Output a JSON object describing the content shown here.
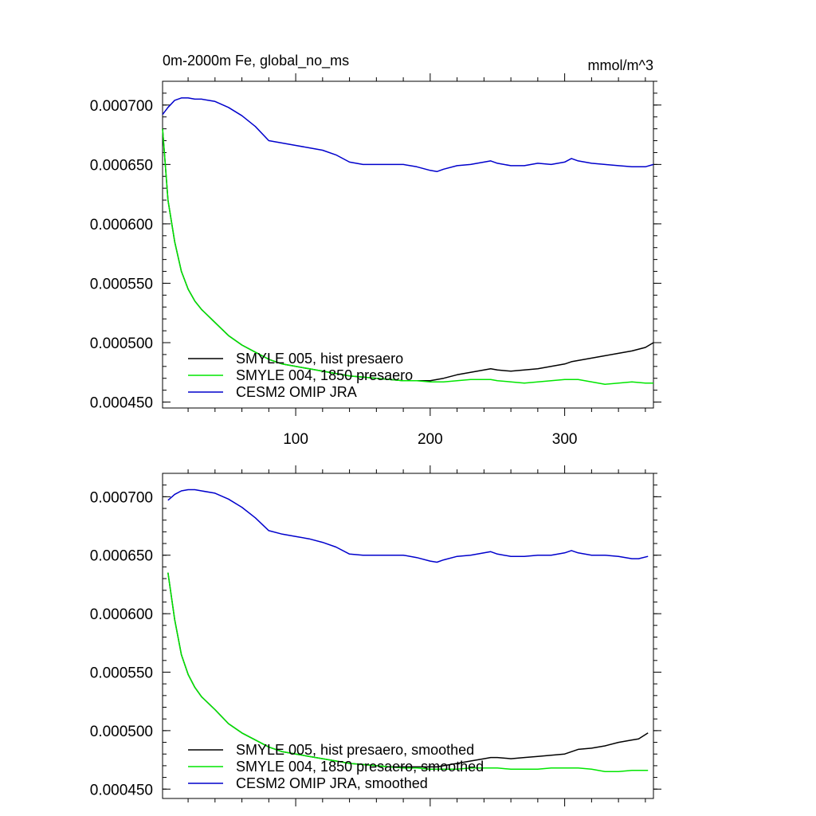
{
  "chart_data": [
    {
      "type": "line",
      "title": "0m-2000m Fe, global_no_ms",
      "units": "mmol/m^3",
      "xlabel": "",
      "ylabel": "",
      "xlim": [
        1,
        366
      ],
      "ylim": [
        0.000445,
        0.00072
      ],
      "xticks": [
        100,
        200,
        300
      ],
      "xtick_labels": [
        "100",
        "200",
        "300"
      ],
      "yticks": [
        0.00045,
        0.0005,
        0.00055,
        0.0006,
        0.00065,
        0.0007
      ],
      "ytick_labels": [
        "0.000450",
        "0.000500",
        "0.000550",
        "0.000600",
        "0.000650",
        "0.000700"
      ],
      "legend_position": "bottom-left",
      "grid": false,
      "x": [
        1,
        5,
        10,
        15,
        20,
        25,
        30,
        40,
        50,
        60,
        70,
        80,
        90,
        100,
        110,
        120,
        130,
        140,
        150,
        160,
        170,
        180,
        190,
        200,
        205,
        210,
        220,
        230,
        240,
        245,
        250,
        260,
        270,
        280,
        290,
        300,
        305,
        310,
        320,
        330,
        340,
        350,
        360,
        366
      ],
      "series": [
        {
          "name": "SMYLE 005, hist presaero",
          "color": "#000000",
          "values": [
            0.00068,
            0.00062,
            0.000585,
            0.00056,
            0.000545,
            0.000535,
            0.000528,
            0.000517,
            0.000506,
            0.000498,
            0.000492,
            0.000486,
            0.000482,
            0.00048,
            0.000478,
            0.000476,
            0.000474,
            0.000472,
            0.000471,
            0.00047,
            0.000469,
            0.000468,
            0.000468,
            0.000468,
            0.000469,
            0.00047,
            0.000473,
            0.000475,
            0.000477,
            0.000478,
            0.000477,
            0.000476,
            0.000477,
            0.000478,
            0.00048,
            0.000482,
            0.000484,
            0.000485,
            0.000487,
            0.000489,
            0.000491,
            0.000493,
            0.000496,
            0.0005
          ]
        },
        {
          "name": "SMYLE 004, 1850 presaero",
          "color": "#00e600",
          "values": [
            0.00068,
            0.00062,
            0.000585,
            0.00056,
            0.000545,
            0.000535,
            0.000528,
            0.000517,
            0.000506,
            0.000498,
            0.000492,
            0.000486,
            0.000482,
            0.00048,
            0.000478,
            0.000476,
            0.000474,
            0.000472,
            0.000471,
            0.00047,
            0.000469,
            0.000468,
            0.000468,
            0.000467,
            0.000467,
            0.000467,
            0.000468,
            0.000469,
            0.000469,
            0.000469,
            0.000468,
            0.000467,
            0.000466,
            0.000467,
            0.000468,
            0.000469,
            0.000469,
            0.000469,
            0.000467,
            0.000465,
            0.000466,
            0.000467,
            0.000466,
            0.000466
          ]
        },
        {
          "name": "CESM2 OMIP JRA",
          "color": "#0000cc",
          "values": [
            0.000692,
            0.000698,
            0.000704,
            0.000706,
            0.000706,
            0.000705,
            0.000705,
            0.000703,
            0.000698,
            0.000691,
            0.000682,
            0.00067,
            0.000668,
            0.000666,
            0.000664,
            0.000662,
            0.000658,
            0.000652,
            0.00065,
            0.00065,
            0.00065,
            0.00065,
            0.000648,
            0.000645,
            0.000644,
            0.000646,
            0.000649,
            0.00065,
            0.000652,
            0.000653,
            0.000651,
            0.000649,
            0.000649,
            0.000651,
            0.00065,
            0.000652,
            0.000655,
            0.000653,
            0.000651,
            0.00065,
            0.000649,
            0.000648,
            0.000648,
            0.00065
          ]
        }
      ]
    },
    {
      "type": "line",
      "title": "",
      "units": "",
      "xlabel": "",
      "ylabel": "",
      "xlim": [
        1,
        366
      ],
      "ylim": [
        0.000442,
        0.00072
      ],
      "xticks": [
        100,
        200,
        300
      ],
      "yticks": [
        0.00045,
        0.0005,
        0.00055,
        0.0006,
        0.00065,
        0.0007
      ],
      "ytick_labels": [
        "0.000450",
        "0.000500",
        "0.000550",
        "0.000600",
        "0.000650",
        "0.000700"
      ],
      "legend_position": "bottom-left",
      "grid": false,
      "x": [
        5,
        10,
        15,
        20,
        25,
        30,
        40,
        50,
        60,
        70,
        80,
        90,
        100,
        110,
        120,
        130,
        140,
        150,
        160,
        170,
        180,
        190,
        200,
        205,
        210,
        220,
        230,
        240,
        245,
        250,
        260,
        270,
        280,
        290,
        300,
        305,
        310,
        320,
        330,
        340,
        350,
        355,
        362
      ],
      "series": [
        {
          "name": "SMYLE 005, hist presaero, smoothed",
          "color": "#000000",
          "values": [
            0.000635,
            0.000595,
            0.000565,
            0.000548,
            0.000537,
            0.000529,
            0.000518,
            0.000506,
            0.000498,
            0.000492,
            0.000486,
            0.000482,
            0.00048,
            0.000478,
            0.000476,
            0.000474,
            0.000472,
            0.000471,
            0.00047,
            0.000469,
            0.000469,
            0.000469,
            0.000469,
            0.000469,
            0.00047,
            0.000472,
            0.000474,
            0.000476,
            0.000477,
            0.000477,
            0.000476,
            0.000477,
            0.000478,
            0.000479,
            0.00048,
            0.000482,
            0.000484,
            0.000485,
            0.000487,
            0.00049,
            0.000492,
            0.000493,
            0.000498
          ]
        },
        {
          "name": "SMYLE 004, 1850 presaero, smoothed",
          "color": "#00e600",
          "values": [
            0.000635,
            0.000595,
            0.000565,
            0.000548,
            0.000537,
            0.000529,
            0.000518,
            0.000506,
            0.000498,
            0.000492,
            0.000486,
            0.000482,
            0.00048,
            0.000478,
            0.000476,
            0.000474,
            0.000472,
            0.000471,
            0.00047,
            0.000469,
            0.000468,
            0.000468,
            0.000467,
            0.000467,
            0.000467,
            0.000467,
            0.000468,
            0.000468,
            0.000468,
            0.000468,
            0.000467,
            0.000467,
            0.000467,
            0.000468,
            0.000468,
            0.000468,
            0.000468,
            0.000467,
            0.000465,
            0.000465,
            0.000466,
            0.000466,
            0.000466
          ]
        },
        {
          "name": "CESM2 OMIP JRA, smoothed",
          "color": "#0000cc",
          "values": [
            0.000697,
            0.000702,
            0.000705,
            0.000706,
            0.000706,
            0.000705,
            0.000703,
            0.000698,
            0.000691,
            0.000682,
            0.000671,
            0.000668,
            0.000666,
            0.000664,
            0.000661,
            0.000657,
            0.000651,
            0.00065,
            0.00065,
            0.00065,
            0.00065,
            0.000648,
            0.000645,
            0.000644,
            0.000646,
            0.000649,
            0.00065,
            0.000652,
            0.000653,
            0.000651,
            0.000649,
            0.000649,
            0.00065,
            0.00065,
            0.000652,
            0.000654,
            0.000652,
            0.00065,
            0.00065,
            0.000649,
            0.000647,
            0.000647,
            0.000649
          ]
        }
      ]
    }
  ]
}
